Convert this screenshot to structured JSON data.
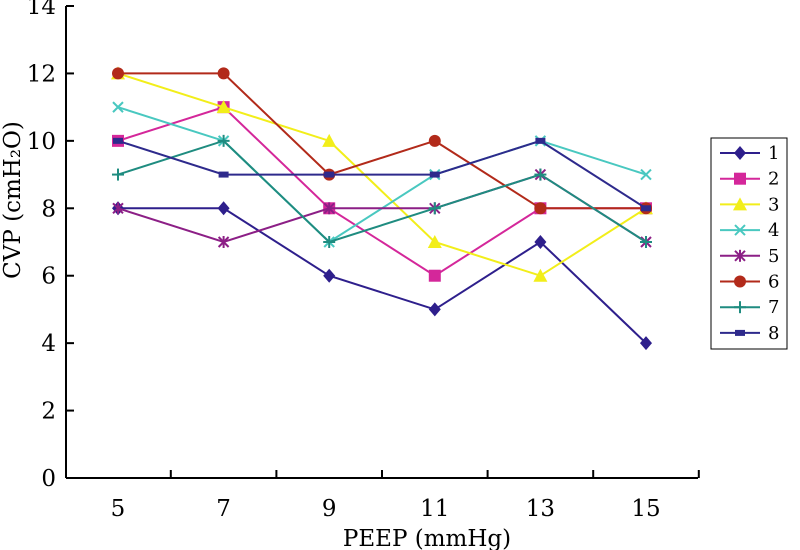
{
  "chart_data": {
    "type": "line",
    "title": "",
    "xlabel": "PEEP (mmHg)",
    "ylabel": "CVP (cmH₂O)",
    "x": [
      5,
      7,
      9,
      11,
      13,
      15
    ],
    "x_tick_labels": [
      "5",
      "7",
      "9",
      "11",
      "13",
      "15"
    ],
    "y_tick_labels": [
      "0",
      "2",
      "4",
      "6",
      "8",
      "10",
      "12",
      "14"
    ],
    "ylim": [
      0,
      14
    ],
    "grid": false,
    "legend_position": "right",
    "series": [
      {
        "name": "1",
        "color": "#2e1f8c",
        "marker": "diamond",
        "values": [
          8,
          8,
          6,
          5,
          7,
          4
        ]
      },
      {
        "name": "2",
        "color": "#d4279a",
        "marker": "square",
        "values": [
          10,
          11,
          8,
          6,
          8,
          8
        ]
      },
      {
        "name": "3",
        "color": "#f2ee1a",
        "marker": "triangle",
        "values": [
          12,
          11,
          10,
          7,
          6,
          8
        ]
      },
      {
        "name": "4",
        "color": "#49c8c0",
        "marker": "x",
        "values": [
          11,
          10,
          7,
          9,
          10,
          9
        ]
      },
      {
        "name": "5",
        "color": "#8c1f86",
        "marker": "star",
        "values": [
          8,
          7,
          8,
          8,
          9,
          7
        ]
      },
      {
        "name": "6",
        "color": "#b22a1a",
        "marker": "circle",
        "values": [
          12,
          12,
          9,
          10,
          8,
          8
        ]
      },
      {
        "name": "7",
        "color": "#1f8c80",
        "marker": "plus",
        "values": [
          9,
          10,
          7,
          8,
          9,
          7
        ]
      },
      {
        "name": "8",
        "color": "#2e2a8c",
        "marker": "dash",
        "values": [
          10,
          9,
          9,
          9,
          10,
          8
        ]
      }
    ]
  }
}
